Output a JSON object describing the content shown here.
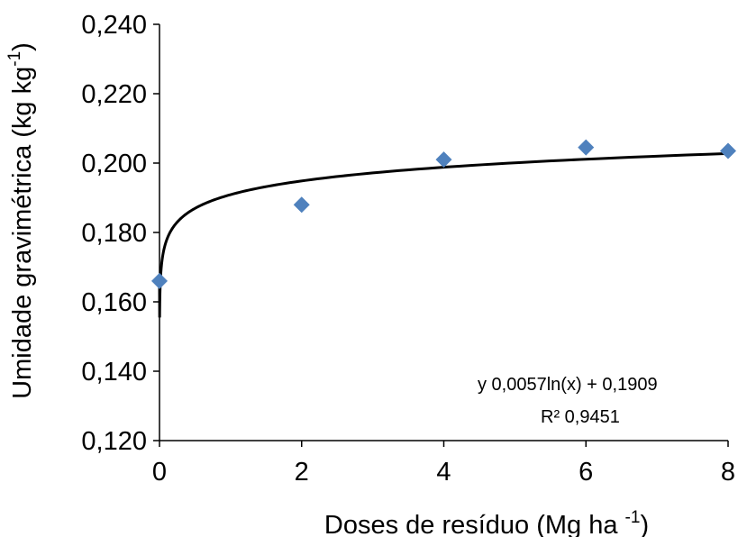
{
  "chart_data": {
    "type": "scatter",
    "title": "",
    "xlabel": "Doses de resíduo (Mg ha ",
    "xlabel_sup": "-1",
    "xlabel_end": ")",
    "ylabel": "Umidade gravimétrica (kg kg",
    "ylabel_sup": "-1",
    "ylabel_end": ")",
    "xlim": [
      0,
      8
    ],
    "ylim": [
      0.12,
      0.24
    ],
    "x_ticks": [
      0,
      2,
      4,
      6,
      8
    ],
    "x_tick_labels": [
      "0",
      "2",
      "4",
      "6",
      "8"
    ],
    "y_ticks": [
      0.12,
      0.14,
      0.16,
      0.18,
      0.2,
      0.22,
      0.24
    ],
    "y_tick_labels": [
      "0,120",
      "0,140",
      "0,160",
      "0,180",
      "0,200",
      "0,220",
      "0,240"
    ],
    "grid": false,
    "series": [
      {
        "points": [
          {
            "x": 0,
            "y": 0.166
          },
          {
            "x": 2,
            "y": 0.188
          },
          {
            "x": 4,
            "y": 0.201
          },
          {
            "x": 6,
            "y": 0.2045
          },
          {
            "x": 8,
            "y": 0.2035
          }
        ],
        "marker": "diamond",
        "color": "#4F81BD"
      }
    ],
    "trendline": {
      "type": "logarithmic",
      "color": "#000000",
      "a": 0.0057,
      "b": 0.1909,
      "equation_label": "y    0,0057ln(x) + 0,1909",
      "r2_label": "R²    0,9451"
    }
  }
}
